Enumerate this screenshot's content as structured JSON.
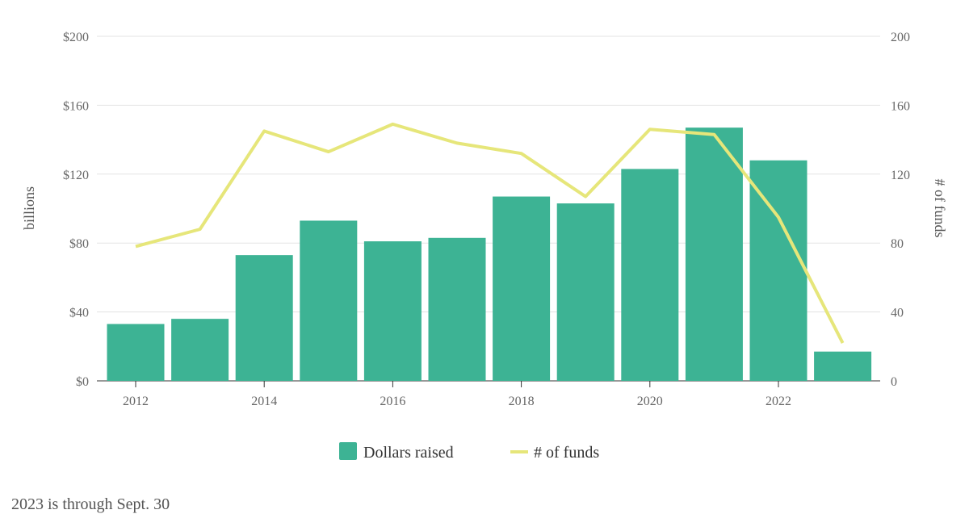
{
  "chart_data": {
    "type": "bar+line",
    "categories": [
      "2012",
      "2013",
      "2014",
      "2015",
      "2016",
      "2017",
      "2018",
      "2019",
      "2020",
      "2021",
      "2022",
      "2023"
    ],
    "series": [
      {
        "name": "Dollars raised",
        "type": "bar",
        "axis": "left",
        "color": "#3db394",
        "values": [
          33,
          36,
          73,
          93,
          81,
          83,
          107,
          103,
          123,
          147,
          128,
          17
        ]
      },
      {
        "name": "# of funds",
        "type": "line",
        "axis": "right",
        "color": "#e6e67a",
        "values": [
          78,
          88,
          145,
          133,
          149,
          138,
          132,
          107,
          146,
          143,
          95,
          22
        ]
      }
    ],
    "xticks": [
      "2012",
      "2014",
      "2016",
      "2018",
      "2020",
      "2022"
    ],
    "ylabel": "billions",
    "y2label": "# of funds",
    "ylim": [
      0,
      200
    ],
    "y2lim": [
      0,
      200
    ],
    "yticks": [
      "$0",
      "$40",
      "$80",
      "$120",
      "$160",
      "$200"
    ],
    "y2ticks": [
      "0",
      "40",
      "80",
      "120",
      "160",
      "200"
    ],
    "grid": true,
    "legend": "bottom"
  },
  "note": "2023 is through Sept. 30"
}
